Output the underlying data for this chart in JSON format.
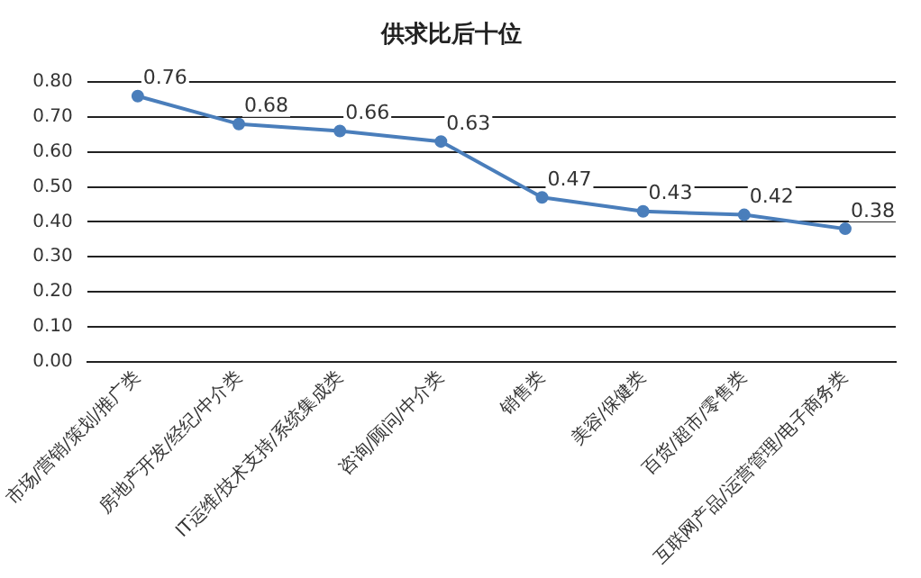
{
  "chart_data": {
    "type": "line",
    "title": "供求比后十位",
    "categories": [
      "市场/营销/策划/推广类",
      "房地产开发/经纪/中介类",
      "IT运维/技术支持/系统集成类",
      "咨询/顾问/中介类",
      "销售类",
      "美容/保健类",
      "百货/超市/零售类",
      "互联网产品/运营管理/电子商务类"
    ],
    "series": [
      {
        "color": "#4a7ebb",
        "values": [
          0.76,
          0.68,
          0.66,
          0.63,
          0.47,
          0.43,
          0.42,
          0.38
        ]
      }
    ],
    "ylim": [
      0,
      0.8
    ],
    "yticks": [
      {
        "value": 0,
        "label": "0.00"
      },
      {
        "value": 0.1,
        "label": "0.10"
      },
      {
        "value": 0.2,
        "label": "0.20"
      },
      {
        "value": 0.3,
        "label": "0.30"
      },
      {
        "value": 0.4,
        "label": "0.40"
      },
      {
        "value": 0.5,
        "label": "0.50"
      },
      {
        "value": 0.6,
        "label": "0.60"
      },
      {
        "value": 0.7,
        "label": "0.70"
      },
      {
        "value": 0.8,
        "label": "0.80"
      }
    ],
    "grid": "y",
    "legend": false,
    "marker": "circle",
    "data_labels": true
  }
}
